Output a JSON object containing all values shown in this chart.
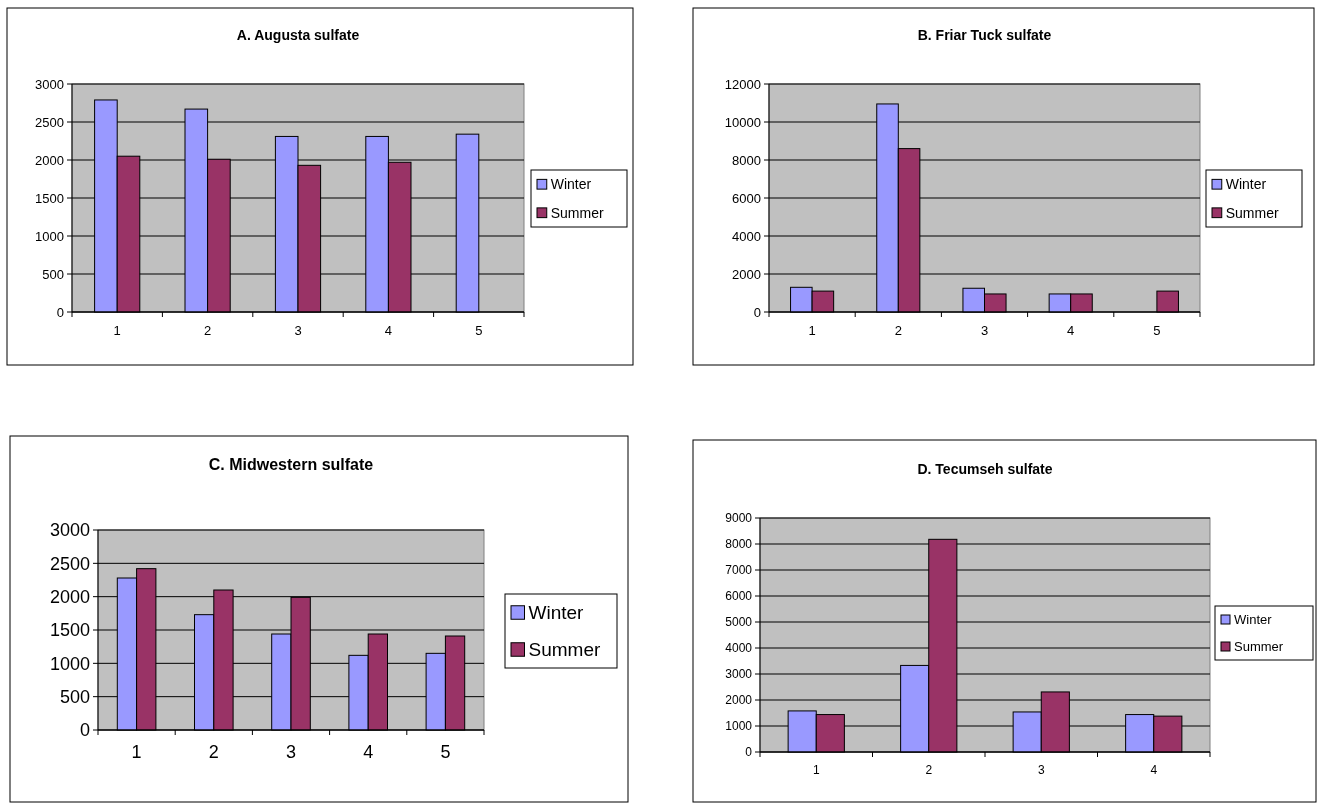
{
  "chart_data": [
    {
      "type": "bar",
      "title": "A. Augusta sulfate",
      "categories": [
        "1",
        "2",
        "3",
        "4",
        "5"
      ],
      "series": [
        {
          "name": "Winter",
          "color": "#9999ff",
          "values": [
            2790,
            2670,
            2310,
            2310,
            2340
          ]
        },
        {
          "name": "Summer",
          "color": "#993366",
          "values": [
            2050,
            2010,
            1930,
            1970,
            null
          ]
        }
      ],
      "ylim": [
        0,
        3000
      ],
      "yticks": [
        0,
        500,
        1000,
        1500,
        2000,
        2500,
        3000
      ],
      "grid": "y",
      "legend": "right"
    },
    {
      "type": "bar",
      "title": "B. Friar Tuck sulfate",
      "categories": [
        "1",
        "2",
        "3",
        "4",
        "5"
      ],
      "series": [
        {
          "name": "Winter",
          "color": "#9999ff",
          "values": [
            1300,
            10950,
            1250,
            950,
            null
          ]
        },
        {
          "name": "Summer",
          "color": "#993366",
          "values": [
            1100,
            8600,
            950,
            950,
            1100
          ]
        }
      ],
      "ylim": [
        0,
        12000
      ],
      "yticks": [
        0,
        2000,
        4000,
        6000,
        8000,
        10000,
        12000
      ],
      "grid": "y",
      "legend": "right"
    },
    {
      "type": "bar",
      "title": "C. Midwestern sulfate",
      "categories": [
        "1",
        "2",
        "3",
        "4",
        "5"
      ],
      "series": [
        {
          "name": "Winter",
          "color": "#9999ff",
          "values": [
            2280,
            1730,
            1440,
            1120,
            1150
          ]
        },
        {
          "name": "Summer",
          "color": "#993366",
          "values": [
            2420,
            2100,
            1990,
            1440,
            1410
          ]
        }
      ],
      "ylim": [
        0,
        3000
      ],
      "yticks": [
        0,
        500,
        1000,
        1500,
        2000,
        2500,
        3000
      ],
      "grid": "y",
      "legend": "right"
    },
    {
      "type": "bar",
      "title": "D. Tecumseh sulfate",
      "categories": [
        "1",
        "2",
        "3",
        "4"
      ],
      "series": [
        {
          "name": "Winter",
          "color": "#9999ff",
          "values": [
            1580,
            3330,
            1540,
            1440
          ]
        },
        {
          "name": "Summer",
          "color": "#993366",
          "values": [
            1440,
            8180,
            2310,
            1380
          ]
        }
      ],
      "ylim": [
        0,
        9000
      ],
      "yticks": [
        0,
        1000,
        2000,
        3000,
        4000,
        5000,
        6000,
        7000,
        8000,
        9000
      ],
      "grid": "y",
      "legend": "right"
    }
  ]
}
